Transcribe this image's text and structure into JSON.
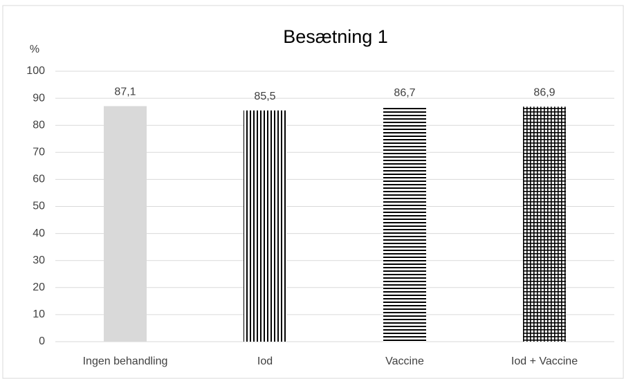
{
  "chart_data": {
    "type": "bar",
    "title": "Besætning 1",
    "y_label": "%",
    "categories": [
      "Ingen behandling",
      "Iod",
      "Vaccine",
      "Iod + Vaccine"
    ],
    "values": [
      87.1,
      85.5,
      86.7,
      86.9
    ],
    "value_labels": [
      "87,1",
      "85,5",
      "86,7",
      "86,9"
    ],
    "colors": [
      "#d9d9d9",
      "#000000",
      "#000000",
      "#000000"
    ],
    "patterns": [
      "solid",
      "vertical",
      "horizontal",
      "grid"
    ],
    "ylim": [
      0,
      100
    ],
    "yticks": [
      0,
      10,
      20,
      30,
      40,
      50,
      60,
      70,
      80,
      90,
      100
    ],
    "grid": true
  }
}
